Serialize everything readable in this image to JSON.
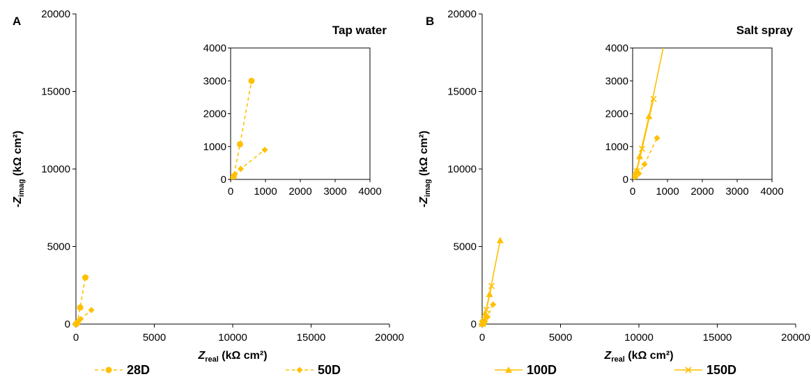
{
  "colors": {
    "series": "#FFC000",
    "axis": "#000000",
    "background": "#FFFFFF"
  },
  "chart_data": [
    {
      "type": "scatter",
      "panel_label": "A",
      "title": "Tap water",
      "xlabel": {
        "main": "Z",
        "sub": "real",
        "unit": " (kΩ cm²)"
      },
      "ylabel": {
        "prefix": "-",
        "main": "Z",
        "sub": "imag",
        "unit": " (kΩ cm²)"
      },
      "xlim": [
        0,
        20000
      ],
      "ylim": [
        0,
        20000
      ],
      "xticks": [
        0,
        5000,
        10000,
        15000,
        20000
      ],
      "yticks": [
        0,
        5000,
        10000,
        15000,
        20000
      ],
      "grid": false,
      "inset": {
        "xlim": [
          0,
          4000
        ],
        "ylim": [
          0,
          4000
        ],
        "xticks": [
          0,
          1000,
          2000,
          3000,
          4000
        ],
        "yticks": [
          0,
          1000,
          2000,
          3000,
          4000
        ]
      },
      "series": [
        {
          "name": "28D",
          "marker": "circle",
          "line": "dashed",
          "points": [
            [
              5,
              2
            ],
            [
              20,
              10
            ],
            [
              45,
              25
            ],
            [
              85,
              80
            ],
            [
              270,
              1070
            ],
            [
              600,
              3000
            ]
          ]
        },
        {
          "name": "50D",
          "marker": "diamond",
          "line": "dashed",
          "points": [
            [
              5,
              5
            ],
            [
              20,
              20
            ],
            [
              60,
              70
            ],
            [
              120,
              160
            ],
            [
              290,
              320
            ],
            [
              980,
              900
            ]
          ]
        }
      ]
    },
    {
      "type": "scatter",
      "panel_label": "B",
      "title": "Salt spray",
      "xlabel": {
        "main": "Z",
        "sub": "real",
        "unit": " (kΩ cm²)"
      },
      "ylabel": {
        "prefix": "-",
        "main": "Z",
        "sub": "imag",
        "unit": " (kΩ cm²)"
      },
      "xlim": [
        0,
        20000
      ],
      "ylim": [
        0,
        20000
      ],
      "xticks": [
        0,
        5000,
        10000,
        15000,
        20000
      ],
      "yticks": [
        0,
        5000,
        10000,
        15000,
        20000
      ],
      "grid": false,
      "inset": {
        "xlim": [
          0,
          4000
        ],
        "ylim": [
          0,
          4000
        ],
        "xticks": [
          0,
          1000,
          2000,
          3000,
          4000
        ],
        "yticks": [
          0,
          1000,
          2000,
          3000,
          4000
        ]
      },
      "series": [
        {
          "name": "100D",
          "marker": "triangle",
          "line": "solid",
          "points": [
            [
              5,
              10
            ],
            [
              20,
              50
            ],
            [
              60,
              150
            ],
            [
              120,
              280
            ],
            [
              200,
              700
            ],
            [
              470,
              1920
            ],
            [
              1150,
              5400
            ]
          ]
        },
        {
          "name": "150D",
          "marker": "x",
          "line": "solid",
          "points": [
            [
              5,
              10
            ],
            [
              20,
              40
            ],
            [
              50,
              110
            ],
            [
              120,
              250
            ],
            [
              270,
              930
            ],
            [
              600,
              2450
            ]
          ]
        },
        {
          "name": "50D",
          "marker": "diamond",
          "line": "dashed",
          "show_in_legend": false,
          "points": [
            [
              5,
              5
            ],
            [
              30,
              30
            ],
            [
              80,
              80
            ],
            [
              180,
              180
            ],
            [
              340,
              460
            ],
            [
              700,
              1260
            ]
          ]
        }
      ]
    }
  ]
}
